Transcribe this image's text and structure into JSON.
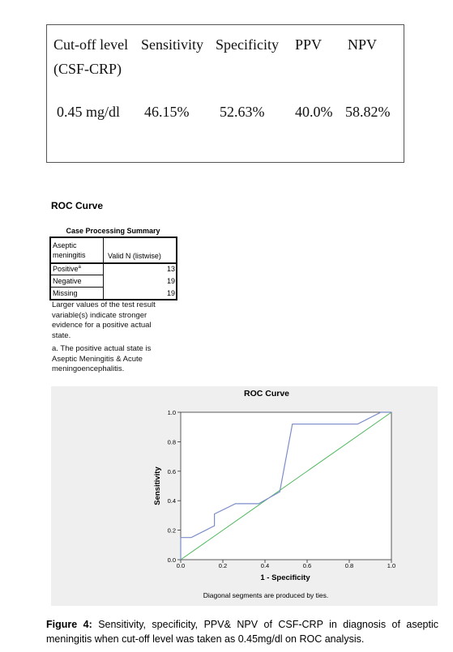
{
  "table": {
    "header": [
      "Cut-off level (CSF-CRP)",
      "Sensitivity",
      "Specificity",
      "PPV",
      "NPV"
    ],
    "rows": [
      [
        "0.45 mg/dl",
        "46.15%",
        "52.63%",
        "40.0%",
        "58.82%"
      ]
    ]
  },
  "spss_output": {
    "title": "ROC Curve",
    "summary_title": "Case Processing Summary",
    "summary_header": [
      "Aseptic meningitis",
      "Valid N (listwise)"
    ],
    "summary_rows": [
      {
        "label": "Positive",
        "marker": "a",
        "value": 13
      },
      {
        "label": "Negative",
        "value": 19
      },
      {
        "label": "Missing",
        "value": 19
      }
    ],
    "notes": [
      "Larger values of the test result variable(s) indicate stronger evidence for a positive actual state.",
      "a. The positive actual state is Aseptic Meningitis &  Acute meningoencephalitis."
    ]
  },
  "chart_data": {
    "type": "line",
    "title": "ROC Curve",
    "x_label": "1 - Specificity",
    "y_label": "Sensitivity",
    "note": "Diagonal segments are produced by ties.",
    "x": [
      0,
      0,
      0.05,
      0.16,
      0.16,
      0.26,
      0.37,
      0.47,
      0.53,
      0.84,
      0.95,
      1.0
    ],
    "values": [
      0,
      0.15,
      0.15,
      0.23,
      0.31,
      0.38,
      0.38,
      0.46,
      0.92,
      0.92,
      1.0,
      1.0
    ],
    "color": "#7b8cc8",
    "reference_line_color": "#4cb85a",
    "xlim": [
      0,
      1
    ],
    "ylim": [
      0,
      1
    ],
    "xticks": [
      {
        "value": 0,
        "label": "0.0"
      },
      0.2,
      0.4,
      0.6,
      0.8,
      {
        "value": 1,
        "label": "1.0"
      }
    ],
    "yticks": [
      {
        "value": 0,
        "label": "0.0"
      },
      0.2,
      0.4,
      0.6,
      0.8,
      {
        "value": 1,
        "label": "1.0"
      }
    ]
  },
  "caption": {
    "label": "Figure 4:",
    "text": "Sensitivity, specificity, PPV& NPV of CSF-CRP in diagnosis of aseptic meningitis when cut-off level was taken as 0.45mg/dl on ROC analysis."
  }
}
